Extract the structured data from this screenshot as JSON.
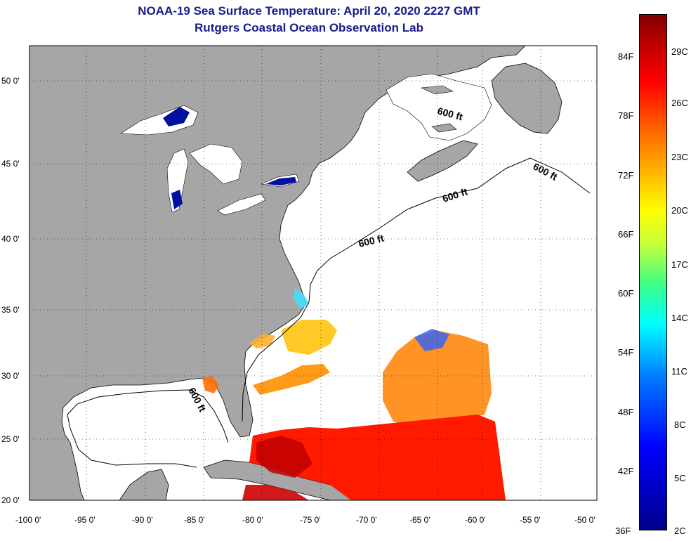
{
  "header": {
    "title": "NOAA-19 Sea Surface Temperature:  April 20, 2020 2227 GMT",
    "subtitle": "Rutgers Coastal Ocean Observation Lab"
  },
  "map": {
    "lon_ticks": [
      "-100 0'",
      "-95 0'",
      "-90 0'",
      "-85 0'",
      "-80 0'",
      "-75 0'",
      "-70 0'",
      "-65 0'",
      "-60 0'",
      "-55 0'",
      "-50 0'"
    ],
    "lat_ticks": [
      "50 0'",
      "45 0'",
      "40 0'",
      "35 0'",
      "30 0'",
      "25 0'",
      "20 0'"
    ],
    "contour_labels": [
      "600 ft",
      "600 ft",
      "600 ft",
      "600 ft",
      "600 ft"
    ],
    "colors": {
      "land": "#a6a6a6",
      "ocean": "#ffffff",
      "lake": "#0010a0"
    }
  },
  "colorbar": {
    "fahrenheit": [
      "84F",
      "78F",
      "72F",
      "66F",
      "60F",
      "54F",
      "48F",
      "42F",
      "36F"
    ],
    "celsius": [
      "29C",
      "26C",
      "23C",
      "20C",
      "17C",
      "14C",
      "11C",
      "8C",
      "5C",
      "2C"
    ]
  }
}
